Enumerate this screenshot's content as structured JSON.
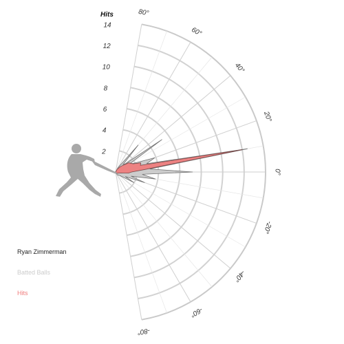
{
  "chart_data": {
    "type": "radar",
    "title": "",
    "radial_axis_label": "Hits",
    "radial_range": [
      0,
      14
    ],
    "radial_ticks": [
      2,
      4,
      6,
      8,
      10,
      12,
      14
    ],
    "angle_range_deg": [
      -80,
      80
    ],
    "angle_ticks": [
      {
        "value": -80,
        "label": "-80°"
      },
      {
        "value": -60,
        "label": "-60°"
      },
      {
        "value": -40,
        "label": "-40°"
      },
      {
        "value": -20,
        "label": "-20°"
      },
      {
        "value": 0,
        "label": "0°"
      },
      {
        "value": 20,
        "label": "20°"
      },
      {
        "value": 40,
        "label": "40°"
      },
      {
        "value": 60,
        "label": "60°"
      },
      {
        "value": 80,
        "label": "80°"
      }
    ],
    "grid": true,
    "legend_position": "bottom-left",
    "player_name": "Ryan Zimmerman",
    "series": [
      {
        "name": "Batted Balls",
        "color": "#cccccc",
        "points": [
          {
            "angle": 80,
            "value": 0
          },
          {
            "angle": 60,
            "value": 0.5
          },
          {
            "angle": 50,
            "value": 3.3
          },
          {
            "angle": 45,
            "value": 1
          },
          {
            "angle": 40,
            "value": 1.2
          },
          {
            "angle": 35,
            "value": 5.3
          },
          {
            "angle": 30,
            "value": 1.5
          },
          {
            "angle": 25,
            "value": 2
          },
          {
            "angle": 20,
            "value": 3.9
          },
          {
            "angle": 15,
            "value": 3
          },
          {
            "angle": 10,
            "value": 12.5
          },
          {
            "angle": 5,
            "value": 3.2
          },
          {
            "angle": 0,
            "value": 7.2
          },
          {
            "angle": -5,
            "value": 2.5
          },
          {
            "angle": -10,
            "value": 3.8
          },
          {
            "angle": -15,
            "value": 1.5
          },
          {
            "angle": -20,
            "value": 2.9
          },
          {
            "angle": -25,
            "value": 1
          },
          {
            "angle": -30,
            "value": 2
          },
          {
            "angle": -40,
            "value": 0.5
          },
          {
            "angle": -60,
            "value": 0.3
          },
          {
            "angle": -80,
            "value": 0
          }
        ]
      },
      {
        "name": "Hits",
        "color": "#f07c7c",
        "points": [
          {
            "angle": 80,
            "value": 0
          },
          {
            "angle": 60,
            "value": 0.3
          },
          {
            "angle": 50,
            "value": 0.6
          },
          {
            "angle": 45,
            "value": 0.8
          },
          {
            "angle": 35,
            "value": 1.5
          },
          {
            "angle": 25,
            "value": 1.8
          },
          {
            "angle": 20,
            "value": 2.5
          },
          {
            "angle": 15,
            "value": 2.4
          },
          {
            "angle": 10,
            "value": 12
          },
          {
            "angle": 5,
            "value": 2.8
          },
          {
            "angle": 0,
            "value": 1.5
          },
          {
            "angle": -5,
            "value": 1.2
          },
          {
            "angle": -10,
            "value": 0.5
          },
          {
            "angle": -20,
            "value": 0.3
          },
          {
            "angle": -40,
            "value": 0.2
          },
          {
            "angle": -80,
            "value": 0
          }
        ]
      }
    ]
  },
  "legend": {
    "player_label": "Ryan Zimmerman",
    "batted_label": "Batted Balls",
    "hits_label": "Hits",
    "batted_color": "#cccccc",
    "hits_color": "#f07c7c"
  },
  "icons": {
    "batter": "batter-silhouette-icon"
  }
}
